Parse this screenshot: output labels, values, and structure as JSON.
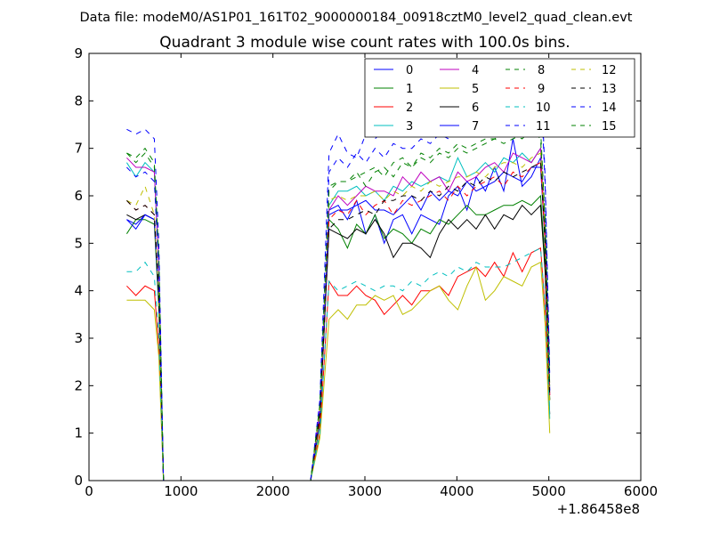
{
  "chart_data": {
    "type": "line",
    "suptitle": "Data file: modeM0/AS1P01_161T02_9000000184_00918cztM0_level2_quad_clean.evt",
    "title": "Quadrant 3 module wise count rates with 100.0s bins.",
    "xlabel": "",
    "ylabel": "",
    "x_offset_label": "+1.86458e8",
    "xlim": [
      0,
      6000
    ],
    "ylim": [
      0,
      9
    ],
    "xticks": [
      0,
      1000,
      2000,
      3000,
      4000,
      5000,
      6000
    ],
    "yticks": [
      0,
      1,
      2,
      3,
      4,
      5,
      6,
      7,
      8,
      9
    ],
    "legend_position": "top-right",
    "x": [
      410,
      510,
      610,
      710,
      760,
      810,
      2410,
      2510,
      2610,
      2710,
      2810,
      2910,
      3010,
      3110,
      3210,
      3310,
      3410,
      3510,
      3610,
      3710,
      3810,
      3910,
      4010,
      4110,
      4210,
      4310,
      4410,
      4510,
      4610,
      4710,
      4810,
      4910,
      4960,
      5010
    ],
    "series": [
      {
        "name": "0",
        "color": "#0000ff",
        "dash": "solid",
        "values": [
          5.5,
          5.4,
          5.6,
          5.5,
          3.8,
          0,
          0,
          1.3,
          5.7,
          5.8,
          5.5,
          5.9,
          5.2,
          5.6,
          5.0,
          5.5,
          5.6,
          5.2,
          5.6,
          5.5,
          5.4,
          6.0,
          6.2,
          5.7,
          6.4,
          6.1,
          6.6,
          6.1,
          7.2,
          6.2,
          6.4,
          6.8,
          5.0,
          1.9
        ]
      },
      {
        "name": "1",
        "color": "#008000",
        "dash": "solid",
        "values": [
          5.2,
          5.5,
          5.5,
          5.4,
          3.6,
          0,
          0,
          1.2,
          5.5,
          5.3,
          4.9,
          5.4,
          5.2,
          5.6,
          5.1,
          5.3,
          5.2,
          5.0,
          5.3,
          5.2,
          5.5,
          5.4,
          5.6,
          5.8,
          5.6,
          5.6,
          5.7,
          5.8,
          5.8,
          5.9,
          5.8,
          6.0,
          4.6,
          1.7
        ]
      },
      {
        "name": "2",
        "color": "#ff0000",
        "dash": "solid",
        "values": [
          4.1,
          3.9,
          4.1,
          4.0,
          2.8,
          0,
          0,
          1.0,
          4.2,
          3.9,
          3.9,
          4.1,
          3.9,
          3.8,
          3.5,
          3.7,
          3.9,
          3.7,
          4.0,
          4.0,
          4.1,
          3.9,
          4.3,
          4.4,
          4.5,
          4.3,
          4.6,
          4.3,
          4.8,
          4.4,
          4.8,
          4.9,
          3.6,
          1.4
        ]
      },
      {
        "name": "3",
        "color": "#00bfbf",
        "dash": "solid",
        "values": [
          6.7,
          6.4,
          6.7,
          6.5,
          4.5,
          0,
          0,
          1.5,
          5.8,
          6.1,
          6.1,
          6.2,
          6.0,
          6.1,
          5.9,
          6.2,
          6.1,
          6.3,
          6.2,
          6.3,
          6.4,
          6.3,
          6.8,
          6.4,
          6.5,
          6.7,
          6.5,
          6.8,
          6.7,
          6.9,
          6.7,
          7.0,
          5.1,
          1.3
        ]
      },
      {
        "name": "4",
        "color": "#bf00bf",
        "dash": "solid",
        "values": [
          6.8,
          6.6,
          6.6,
          6.5,
          4.5,
          0,
          0,
          1.5,
          5.7,
          6.0,
          5.8,
          6.0,
          6.2,
          6.1,
          6.1,
          6.0,
          6.4,
          6.2,
          6.5,
          6.3,
          6.4,
          6.1,
          6.5,
          6.3,
          6.4,
          6.6,
          6.7,
          6.5,
          6.9,
          6.8,
          6.7,
          7.0,
          5.2,
          1.8
        ]
      },
      {
        "name": "5",
        "color": "#bfbf00",
        "dash": "solid",
        "values": [
          3.8,
          3.8,
          3.8,
          3.6,
          2.6,
          0,
          0,
          0.9,
          3.4,
          3.6,
          3.4,
          3.7,
          3.7,
          3.9,
          3.8,
          3.9,
          3.5,
          3.6,
          3.8,
          4.0,
          4.1,
          3.8,
          3.6,
          4.1,
          4.5,
          3.8,
          4.0,
          4.3,
          4.2,
          4.1,
          4.5,
          4.6,
          3.3,
          1.0
        ]
      },
      {
        "name": "6",
        "color": "#000000",
        "dash": "solid",
        "values": [
          5.6,
          5.5,
          5.6,
          5.5,
          3.9,
          0,
          0,
          1.3,
          5.3,
          5.2,
          5.1,
          5.3,
          5.2,
          5.5,
          5.2,
          4.7,
          5.0,
          5.0,
          4.9,
          4.7,
          5.2,
          5.5,
          5.3,
          5.5,
          5.3,
          5.6,
          5.3,
          5.6,
          5.5,
          5.8,
          5.6,
          5.8,
          4.4,
          1.7
        ]
      },
      {
        "name": "7",
        "color": "#0000ff",
        "dash": "solid",
        "values": [
          5.5,
          5.3,
          5.6,
          5.5,
          3.8,
          0,
          0,
          1.3,
          5.6,
          5.7,
          5.7,
          5.8,
          5.9,
          5.7,
          5.7,
          5.6,
          5.8,
          6.0,
          5.7,
          6.1,
          5.9,
          6.1,
          6.0,
          6.3,
          6.1,
          6.2,
          6.3,
          6.5,
          6.4,
          6.3,
          6.6,
          6.6,
          5.0,
          1.9
        ]
      },
      {
        "name": "8",
        "color": "#008000",
        "dash": "dashed",
        "values": [
          6.9,
          6.7,
          6.9,
          6.6,
          4.6,
          0,
          0,
          1.6,
          6.2,
          6.3,
          6.3,
          6.4,
          6.5,
          6.6,
          6.4,
          6.7,
          6.8,
          6.6,
          6.9,
          6.8,
          7.0,
          6.9,
          7.1,
          7.0,
          7.1,
          7.2,
          7.2,
          7.3,
          7.3,
          7.2,
          7.4,
          7.2,
          5.4,
          2.0
        ]
      },
      {
        "name": "9",
        "color": "#ff0000",
        "dash": "dashed",
        "values": [
          5.9,
          5.7,
          5.8,
          5.6,
          4.0,
          0,
          0,
          1.3,
          5.5,
          5.7,
          5.6,
          5.9,
          5.6,
          5.8,
          5.9,
          5.6,
          5.9,
          5.8,
          5.9,
          6.0,
          6.1,
          5.9,
          6.2,
          6.0,
          6.2,
          6.3,
          6.4,
          6.2,
          6.5,
          6.4,
          6.6,
          6.7,
          5.0,
          1.8
        ]
      },
      {
        "name": "10",
        "color": "#00bfbf",
        "dash": "dashed",
        "values": [
          4.4,
          4.4,
          4.6,
          4.3,
          3.0,
          0,
          0,
          1.0,
          4.2,
          4.0,
          4.1,
          4.2,
          4.1,
          4.0,
          4.1,
          4.1,
          4.0,
          4.2,
          4.1,
          4.3,
          4.4,
          4.3,
          4.5,
          4.4,
          4.6,
          4.5,
          4.5,
          4.5,
          4.6,
          4.7,
          4.8,
          4.9,
          3.7,
          1.4
        ]
      },
      {
        "name": "11",
        "color": "#0000ff",
        "dash": "dashed",
        "values": [
          6.6,
          6.4,
          6.5,
          6.3,
          4.4,
          0,
          0,
          1.5,
          6.5,
          6.8,
          6.6,
          6.9,
          6.7,
          7.0,
          6.8,
          7.1,
          7.0,
          7.0,
          7.2,
          7.1,
          7.3,
          7.2,
          7.4,
          7.4,
          7.5,
          7.6,
          7.5,
          7.7,
          7.8,
          8.0,
          8.2,
          8.5,
          6.2,
          2.2
        ]
      },
      {
        "name": "12",
        "color": "#bfbf00",
        "dash": "dashed",
        "values": [
          5.9,
          5.8,
          6.2,
          5.6,
          3.9,
          0,
          0,
          1.4,
          5.9,
          6.0,
          5.9,
          6.0,
          6.0,
          6.1,
          5.9,
          6.1,
          6.0,
          6.2,
          6.1,
          6.3,
          6.2,
          6.3,
          6.4,
          6.4,
          6.5,
          6.4,
          6.6,
          6.7,
          6.7,
          6.6,
          6.8,
          6.9,
          5.2,
          1.6
        ]
      },
      {
        "name": "13",
        "color": "#000000",
        "dash": "dashed",
        "values": [
          5.9,
          5.7,
          5.8,
          5.6,
          3.9,
          0,
          0,
          1.4,
          5.3,
          5.5,
          5.5,
          5.6,
          5.7,
          5.6,
          5.9,
          5.9,
          6.0,
          6.0,
          5.9,
          6.1,
          6.0,
          6.2,
          6.1,
          6.3,
          6.2,
          6.4,
          6.3,
          6.5,
          6.4,
          6.5,
          6.6,
          6.7,
          5.0,
          1.8
        ]
      },
      {
        "name": "14",
        "color": "#0000ff",
        "dash": "dashed",
        "values": [
          7.4,
          7.3,
          7.4,
          7.2,
          5.0,
          0,
          0,
          1.7,
          6.9,
          7.3,
          6.9,
          6.8,
          7.3,
          7.2,
          7.4,
          7.6,
          7.5,
          7.3,
          7.6,
          7.6,
          7.8,
          7.7,
          7.9,
          7.8,
          8.0,
          7.9,
          8.1,
          8.1,
          7.9,
          8.0,
          8.4,
          8.7,
          6.4,
          2.3
        ]
      },
      {
        "name": "15",
        "color": "#008000",
        "dash": "dashed",
        "values": [
          6.9,
          6.8,
          7.0,
          6.7,
          4.7,
          0,
          0,
          1.6,
          6.1,
          6.3,
          6.3,
          6.5,
          6.2,
          6.5,
          6.6,
          6.4,
          6.7,
          6.6,
          6.8,
          6.7,
          6.9,
          6.8,
          7.0,
          6.9,
          7.0,
          7.1,
          7.2,
          7.1,
          7.2,
          7.3,
          7.4,
          7.4,
          5.5,
          2.0
        ]
      }
    ]
  }
}
